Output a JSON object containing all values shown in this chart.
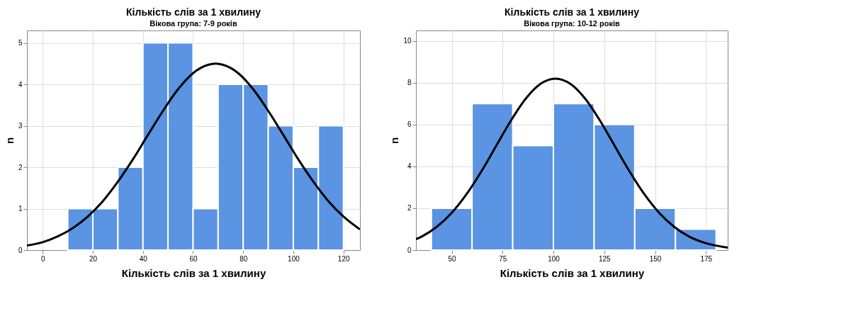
{
  "chart_data": [
    {
      "type": "histogram",
      "title": "Кількість слів за 1 хвилину",
      "subtitle": "Вікова група: 7-9 років",
      "xlabel": "Кількість слів за 1 хвилину",
      "ylabel": "n",
      "xlim": [
        -6.3,
        126.6
      ],
      "xticks": [
        0,
        20,
        40,
        60,
        80,
        100,
        120
      ],
      "ylim": [
        0,
        5.3
      ],
      "yticks": [
        0,
        1,
        2,
        3,
        4,
        5
      ],
      "grid": true,
      "series": [
        {
          "color": "#5a94e2",
          "bins": [
            10,
            20,
            30,
            40,
            50,
            60,
            70,
            80,
            90,
            100,
            110,
            120
          ],
          "values": [
            1,
            1,
            2,
            5,
            5,
            1,
            4,
            4,
            3,
            2,
            3
          ]
        },
        {
          "type": "line",
          "color": "#000000",
          "x": [
            -6.3,
            0,
            6,
            12,
            18,
            24,
            30,
            36,
            42,
            48,
            54,
            60,
            66,
            69,
            72,
            78,
            84,
            90,
            96,
            102,
            108,
            114,
            120,
            126.6
          ],
          "values": [
            0.11,
            0.19,
            0.33,
            0.53,
            0.81,
            1.18,
            1.65,
            2.19,
            2.78,
            3.36,
            3.88,
            4.27,
            4.47,
            4.5,
            4.47,
            4.27,
            3.88,
            3.36,
            2.78,
            2.19,
            1.65,
            1.18,
            0.81,
            0.5
          ]
        }
      ]
    },
    {
      "type": "histogram",
      "title": "Кількість слів за 1 хвилину",
      "subtitle": "Вікова група: 10-12 років",
      "xlabel": "Кількість слів за 1 хвилину",
      "ylabel": "n",
      "xlim": [
        32.4,
        185.7
      ],
      "xticks": [
        50,
        75,
        100,
        125,
        150,
        175
      ],
      "ylim": [
        0,
        10.5
      ],
      "yticks": [
        0,
        2,
        4,
        6,
        8,
        10
      ],
      "grid": true,
      "series": [
        {
          "color": "#5a94e2",
          "bins": [
            40,
            60,
            80,
            100,
            120,
            140,
            160,
            180
          ],
          "values": [
            2,
            7,
            5,
            7,
            6,
            2,
            1
          ]
        },
        {
          "type": "line",
          "color": "#000000",
          "x": [
            32.4,
            35.3,
            42.6,
            49.9,
            57.2,
            64.5,
            71.8,
            79.1,
            86.4,
            93.7,
            101,
            108.3,
            115.6,
            122.9,
            130.2,
            137.5,
            144.8,
            152.1,
            159.4,
            166.7,
            174,
            181.3,
            185.7
          ],
          "values": [
            0.52,
            0.65,
            1.11,
            1.77,
            2.66,
            3.75,
            4.97,
            6.19,
            7.24,
            7.95,
            8.2,
            7.95,
            7.24,
            6.19,
            4.97,
            3.75,
            2.66,
            1.77,
            1.11,
            0.65,
            0.36,
            0.19,
            0.12
          ]
        }
      ]
    }
  ]
}
